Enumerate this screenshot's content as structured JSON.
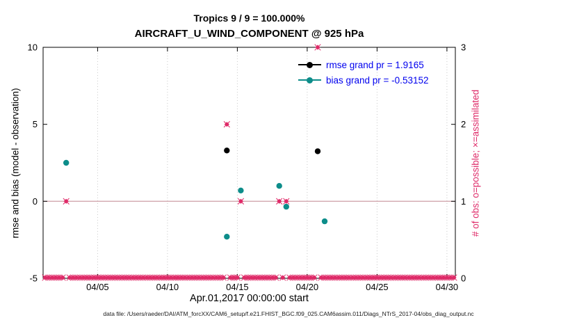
{
  "figure": {
    "title_line1": "Tropics 9 / 9 = 100.000%",
    "title_line2": "AIRCRAFT_U_WIND_COMPONENT @ 925 hPa",
    "xlabel": "Apr.01,2017 00:00:00 start",
    "ylabel_left": "rmse and bias (model - observation)",
    "ylabel_right": "# of obs: o=possible; ×=assimilated",
    "footer": "data file: /Users/raeder/DAI/ATM_forcXX/CAM6_setup/f.e21.FHIST_BGC.f09_025.CAM6assim.011/Diags_NTrS_2017-04/obs_diag_output.nc"
  },
  "legend": {
    "position": "top-right-inside",
    "text_color": "#0000ee",
    "items": [
      {
        "label": "rmse grand pr = 1.9165",
        "series": "rmse",
        "color": "#000000"
      },
      {
        "label": "bias grand pr = -0.53152",
        "series": "bias",
        "color": "#0d8d8a"
      }
    ]
  },
  "colors": {
    "rmse": "#000000",
    "bias": "#0d8d8a",
    "obs": "#df2a68",
    "zero_line": "#d2a8ae",
    "grid": "#c9c9c9",
    "axis": "#000000",
    "right_axis_text": "#df2a68"
  },
  "chart_data": {
    "type": "scatter",
    "title": "Tropics 9 / 9 = 100.000% — AIRCRAFT_U_WIND_COMPONENT @ 925 hPa",
    "grid": "vertical-dotted",
    "legend_position": "top-right-inside",
    "x_axis": {
      "label": "Apr.01,2017 00:00:00 start",
      "unit": "day of April 2017",
      "domain_days": [
        1.1,
        30.6
      ],
      "ticks": [
        {
          "day": 5,
          "label": "04/05"
        },
        {
          "day": 10,
          "label": "04/10"
        },
        {
          "day": 15,
          "label": "04/15"
        },
        {
          "day": 20,
          "label": "04/20"
        },
        {
          "day": 25,
          "label": "04/25"
        },
        {
          "day": 30,
          "label": "04/30"
        }
      ]
    },
    "y_axis_left": {
      "label": "rmse and bias (model - observation)",
      "range": [
        -5,
        10
      ],
      "ticks": [
        -5,
        0,
        5,
        10
      ]
    },
    "y_axis_right": {
      "label": "# of obs: o=possible; ×=assimilated",
      "range": [
        0,
        3
      ],
      "ticks": [
        0,
        1,
        2,
        3
      ]
    },
    "zero_reference_line": 0,
    "series": [
      {
        "name": "rmse",
        "axis": "left",
        "marker": "circle",
        "color_key": "rmse",
        "points": [
          [
            14.25,
            3.3
          ],
          [
            20.75,
            3.25
          ]
        ]
      },
      {
        "name": "bias",
        "axis": "left",
        "marker": "circle",
        "color_key": "bias",
        "points": [
          [
            2.75,
            2.5
          ],
          [
            14.25,
            -2.3
          ],
          [
            15.25,
            0.7
          ],
          [
            18.0,
            1.0
          ],
          [
            18.5,
            -0.35
          ],
          [
            21.25,
            -1.3
          ]
        ]
      },
      {
        "name": "obs_count_nonzero",
        "axis": "right",
        "marker": "diamond-x",
        "color_key": "obs",
        "points": [
          [
            2.75,
            1
          ],
          [
            14.25,
            2
          ],
          [
            15.25,
            1
          ],
          [
            18.0,
            1
          ],
          [
            18.5,
            1
          ],
          [
            20.75,
            3
          ]
        ]
      }
    ],
    "obs_count_zero_row": {
      "axis": "right",
      "value": 0,
      "start_day": 1.25,
      "end_day": 30.5,
      "step_days": 0.25,
      "marker": "diamond-x",
      "color_key": "obs"
    }
  }
}
